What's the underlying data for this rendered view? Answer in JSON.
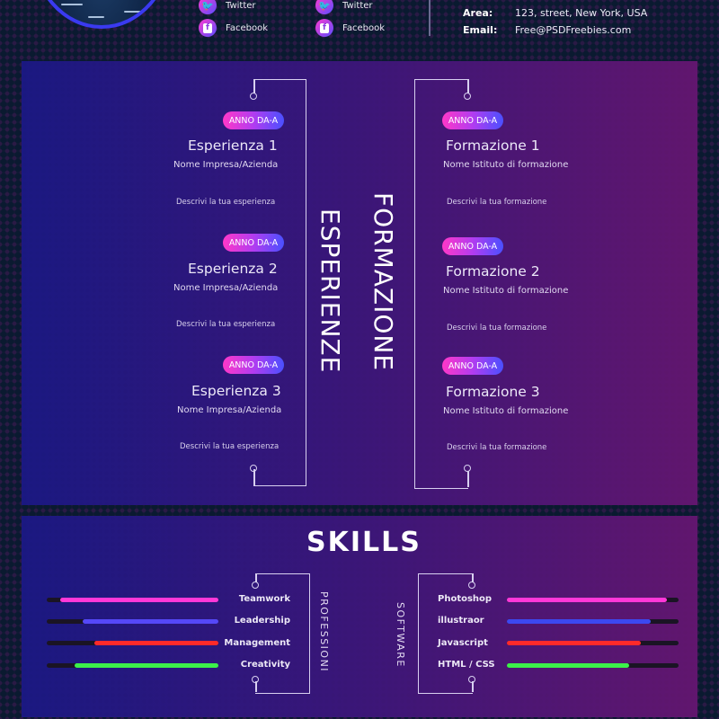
{
  "header": {
    "social_left": [
      {
        "icon": "twitter-icon",
        "label": "Twitter"
      },
      {
        "icon": "facebook-icon",
        "label": "Facebook"
      }
    ],
    "social_right": [
      {
        "icon": "twitter-icon",
        "label": "Twitter"
      },
      {
        "icon": "facebook-icon",
        "label": "Facebook"
      }
    ],
    "contact": {
      "area_label": "Area:",
      "area_value": "123, street, New York, USA",
      "email_label": "Email:",
      "email_value": "Free@PSDFreebies.com"
    }
  },
  "experience": {
    "section_title": "ESPERIENZE",
    "items": [
      {
        "badge": "ANNO DA-A",
        "title": "Esperienza 1",
        "company": "Nome Impresa/Azienda",
        "desc": "Descrivi la tua esperienza"
      },
      {
        "badge": "ANNO DA-A",
        "title": "Esperienza 2",
        "company": "Nome Impresa/Azienda",
        "desc": "Descrivi la tua esperienza"
      },
      {
        "badge": "ANNO DA-A",
        "title": "Esperienza 3",
        "company": "Nome Impresa/Azienda",
        "desc": "Descrivi la tua esperienza"
      }
    ]
  },
  "education": {
    "section_title": "FORMAZIONE",
    "items": [
      {
        "badge": "ANNO DA-A",
        "title": "Formazione 1",
        "school": "Nome Istituto di formazione",
        "desc": "Descrivi la tua formazione"
      },
      {
        "badge": "ANNO DA-A",
        "title": "Formazione 2",
        "school": "Nome Istituto di formazione",
        "desc": "Descrivi la tua formazione"
      },
      {
        "badge": "ANNO DA-A",
        "title": "Formazione 3",
        "school": "Nome Istituto di formazione",
        "desc": "Descrivi la tua formazione"
      }
    ]
  },
  "skills": {
    "title": "SKILLS",
    "professional_label": "PROFESSIONI",
    "software_label": "SOFTWARE",
    "professional": [
      {
        "label": "Teamwork",
        "percent": 92,
        "color": "#ff38d8"
      },
      {
        "label": "Leadership",
        "percent": 79,
        "color": "#5548f8"
      },
      {
        "label": "Management",
        "percent": 72,
        "color": "#ff2a2a"
      },
      {
        "label": "Creativity",
        "percent": 84,
        "color": "#3cf04a"
      }
    ],
    "software": [
      {
        "label": "Photoshop",
        "percent": 93,
        "color": "#ff38d8"
      },
      {
        "label": "illustraor",
        "percent": 84,
        "color": "#3c48f0"
      },
      {
        "label": "Javascript",
        "percent": 78,
        "color": "#ff2a2a"
      },
      {
        "label": "HTML / CSS",
        "percent": 71,
        "color": "#3cf04a"
      }
    ]
  }
}
